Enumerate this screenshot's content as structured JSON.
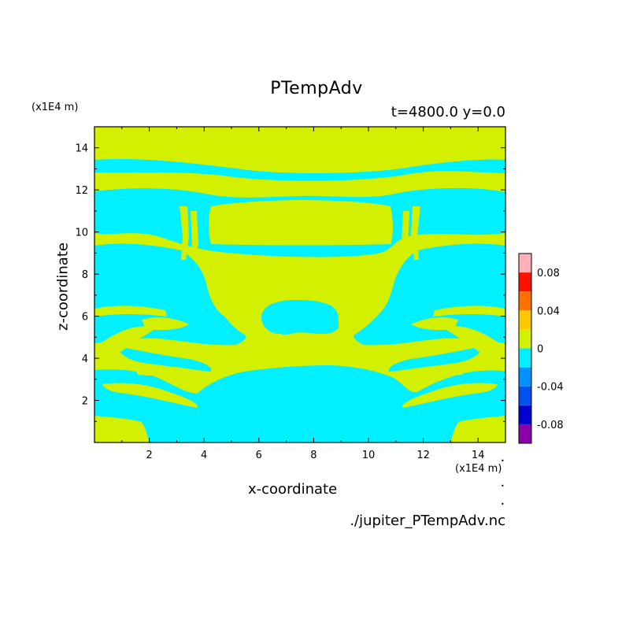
{
  "chart_data": {
    "type": "heatmap",
    "title": "PTempAdv",
    "subtitle": "t=4800.0 y=0.0",
    "xlabel": "x-coordinate",
    "ylabel": "z-coordinate",
    "x_unit": "(x1E4 m)",
    "y_unit": "(x1E4 m)",
    "xlim": [
      0,
      15
    ],
    "ylim": [
      0,
      15
    ],
    "x_ticks": [
      "2",
      "4",
      "6",
      "8",
      "10",
      "12",
      "14"
    ],
    "y_ticks": [
      "2",
      "4",
      "6",
      "8",
      "10",
      "12",
      "14"
    ],
    "colorbar": {
      "levels": [
        -0.1,
        -0.08,
        -0.06,
        -0.04,
        -0.02,
        0,
        0.02,
        0.04,
        0.06,
        0.08,
        0.1
      ],
      "colors": [
        "#8b00a8",
        "#0000d0",
        "#0050f0",
        "#0090ff",
        "#00f0ff",
        "#d2f000",
        "#ffc800",
        "#ff7000",
        "#ff1000",
        "#ffb0b8"
      ],
      "labels": [
        "0.08",
        "0.04",
        "0",
        "-0.04",
        "-0.08"
      ]
    },
    "background_color": "#d2f000",
    "negative_color": "#00f0ff",
    "source": "./jupiter_PTempAdv.nc"
  }
}
